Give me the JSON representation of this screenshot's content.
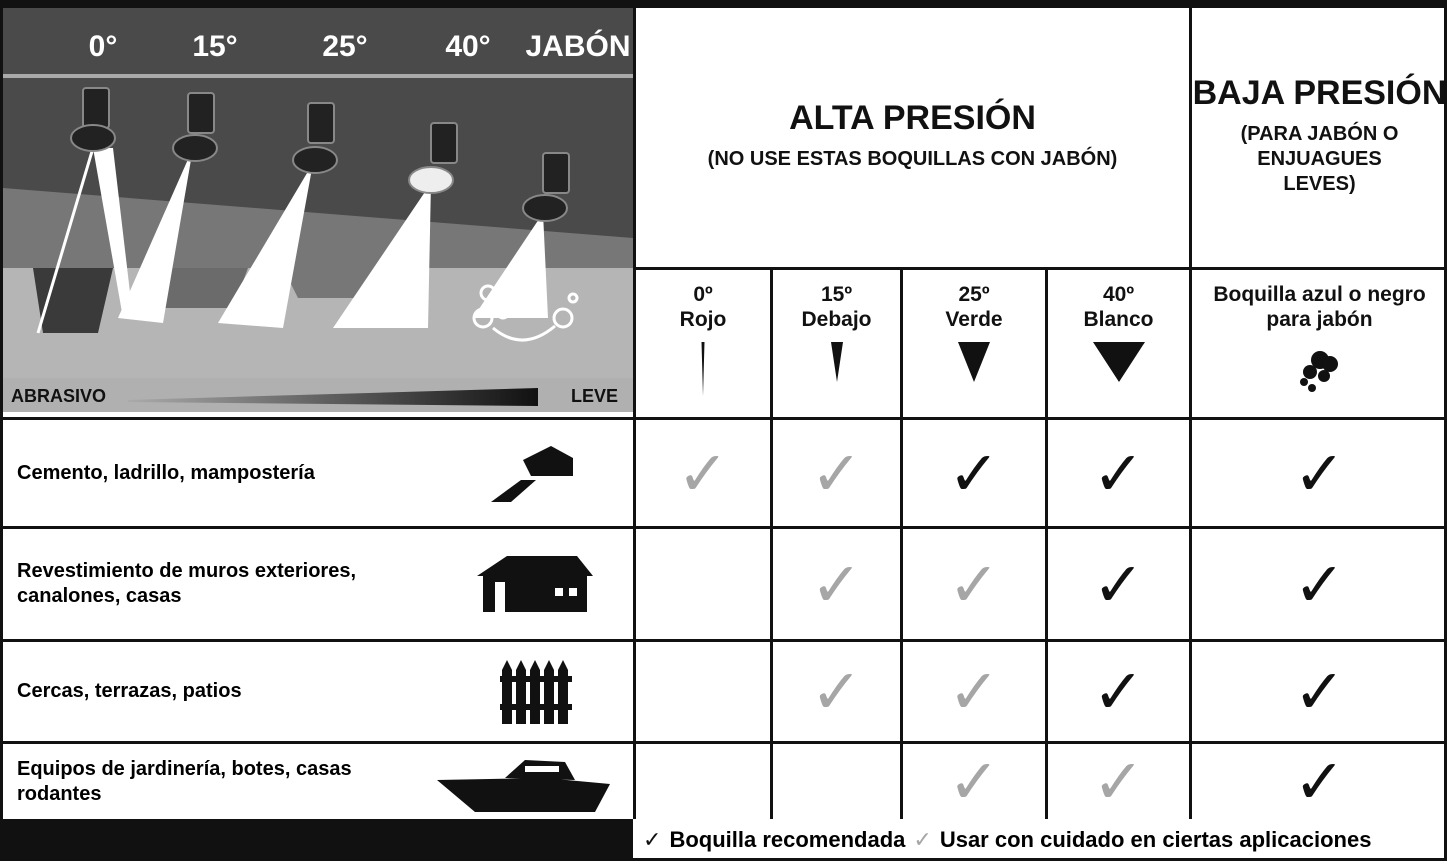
{
  "illustration": {
    "angles": [
      "0°",
      "15°",
      "25°",
      "40°",
      "JABÓN"
    ],
    "scale": {
      "left": "ABRASIVO",
      "right": "LEVE"
    }
  },
  "header": {
    "high": {
      "title": "ALTA PRESIÓN",
      "subtitle": "(NO USE ESTAS BOQUILLAS CON JABÓN)"
    },
    "low": {
      "title": "BAJA PRESIÓN",
      "subtitle": "(PARA JABÓN O ENJUAGUES LEVES)"
    }
  },
  "columns": [
    {
      "angle": "0º",
      "name": "Rojo"
    },
    {
      "angle": "15º",
      "name": "Debajo"
    },
    {
      "angle": "25º",
      "name": "Verde"
    },
    {
      "angle": "40º",
      "name": "Blanco"
    },
    {
      "name": "Boquilla azul o negro para jabón"
    }
  ],
  "rows": [
    {
      "label": "Cemento, ladrillo, mampostería",
      "cells": [
        {
          "mark": "✓",
          "color": "#a6a6a6"
        },
        {
          "mark": "✓",
          "color": "#a6a6a6"
        },
        {
          "mark": "✓",
          "color": "#111111"
        },
        {
          "mark": "✓",
          "color": "#111111"
        },
        {
          "mark": "✓",
          "color": "#111111"
        }
      ]
    },
    {
      "label": "Revestimiento de muros exteriores, canalones, casas",
      "cells": [
        null,
        {
          "mark": "✓",
          "color": "#a6a6a6"
        },
        {
          "mark": "✓",
          "color": "#a6a6a6"
        },
        {
          "mark": "✓",
          "color": "#111111"
        },
        {
          "mark": "✓",
          "color": "#111111"
        }
      ]
    },
    {
      "label": "Cercas, terrazas, patios",
      "cells": [
        null,
        {
          "mark": "✓",
          "color": "#a6a6a6"
        },
        {
          "mark": "✓",
          "color": "#a6a6a6"
        },
        {
          "mark": "✓",
          "color": "#111111"
        },
        {
          "mark": "✓",
          "color": "#111111"
        }
      ]
    },
    {
      "label": "Equipos de jardinería, botes, casas rodantes",
      "cells": [
        null,
        null,
        {
          "mark": "✓",
          "color": "#a6a6a6"
        },
        {
          "mark": "✓",
          "color": "#a6a6a6"
        },
        {
          "mark": "✓",
          "color": "#111111"
        }
      ]
    }
  ],
  "legend": [
    {
      "mark": "✓",
      "color": "#111111",
      "label": "Boquilla recomendada"
    },
    {
      "mark": "✓",
      "color": "#a6a6a6",
      "label": "Usar con cuidado en ciertas aplicaciones"
    }
  ]
}
